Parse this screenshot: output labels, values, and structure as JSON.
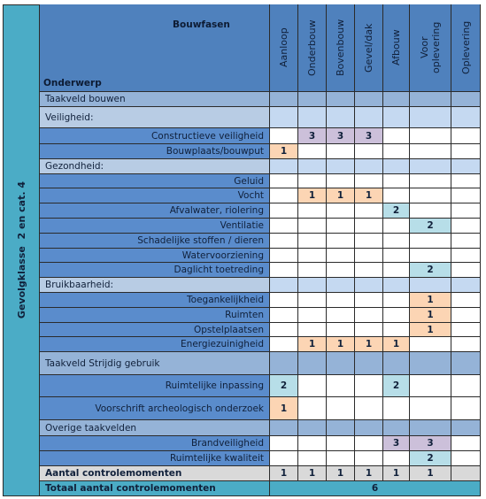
{
  "side_label": "Gevolgklasse  2 en cat. 4",
  "header": {
    "phases_title": "Bouwfasen",
    "subject": "Onderwerp",
    "phases": [
      "Aanloop",
      "Onderbouw",
      "Bovenbouw",
      "Gevel/dak",
      "Afbouw",
      "Voor oplevering",
      "Oplevering"
    ]
  },
  "groups": [
    {
      "title": "Taakveld bouwen",
      "sections": [
        {
          "title": "Veiligheid:",
          "items": [
            {
              "label": "Constructieve veiligheid",
              "cells": [
                null,
                3,
                3,
                3,
                null,
                null,
                null
              ]
            },
            {
              "label": "Bouwplaats/bouwput",
              "cells": [
                1,
                null,
                null,
                null,
                null,
                null,
                null
              ]
            }
          ]
        },
        {
          "title": "Gezondheid:",
          "items": [
            {
              "label": "Geluid",
              "cells": [
                null,
                null,
                null,
                null,
                null,
                null,
                null
              ]
            },
            {
              "label": "Vocht",
              "cells": [
                null,
                1,
                1,
                1,
                null,
                null,
                null
              ]
            },
            {
              "label": "Afvalwater, riolering",
              "cells": [
                null,
                null,
                null,
                null,
                2,
                null,
                null
              ]
            },
            {
              "label": "Ventilatie",
              "cells": [
                null,
                null,
                null,
                null,
                null,
                2,
                null
              ]
            },
            {
              "label": "Schadelijke stoffen / dieren",
              "cells": [
                null,
                null,
                null,
                null,
                null,
                null,
                null
              ]
            },
            {
              "label": "Watervoorziening",
              "cells": [
                null,
                null,
                null,
                null,
                null,
                null,
                null
              ]
            },
            {
              "label": "Daglicht toetreding",
              "cells": [
                null,
                null,
                null,
                null,
                null,
                2,
                null
              ]
            }
          ]
        },
        {
          "title": "Bruikbaarheid:",
          "items": [
            {
              "label": "Toegankelijkheid",
              "cells": [
                null,
                null,
                null,
                null,
                null,
                1,
                null
              ]
            },
            {
              "label": "Ruimten",
              "cells": [
                null,
                null,
                null,
                null,
                null,
                1,
                null
              ]
            },
            {
              "label": "Opstelplaatsen",
              "cells": [
                null,
                null,
                null,
                null,
                null,
                1,
                null
              ]
            },
            {
              "label": "Energiezuinigheid",
              "cells": [
                null,
                1,
                1,
                1,
                1,
                null,
                null
              ]
            }
          ]
        }
      ]
    },
    {
      "title": "Taakveld Strijdig gebruik",
      "items": [
        {
          "label": "Ruimtelijke inpassing",
          "cells": [
            2,
            null,
            null,
            null,
            2,
            null,
            null
          ]
        },
        {
          "label": "Voorschrift archeologisch onderzoek",
          "cells": [
            1,
            null,
            null,
            null,
            null,
            null,
            null
          ]
        }
      ]
    },
    {
      "title": "Overige taakvelden",
      "items": [
        {
          "label": "Brandveiligheid",
          "cells": [
            null,
            null,
            null,
            null,
            3,
            3,
            null
          ]
        },
        {
          "label": "Ruimtelijke kwaliteit",
          "cells": [
            null,
            null,
            null,
            null,
            null,
            2,
            null
          ]
        }
      ]
    }
  ],
  "totals": {
    "label": "Aantal controlemomenten",
    "cells": [
      1,
      1,
      1,
      1,
      1,
      1,
      null
    ]
  },
  "grand_total": {
    "label": "Totaal aantal controlemomenten",
    "value": 6
  }
}
